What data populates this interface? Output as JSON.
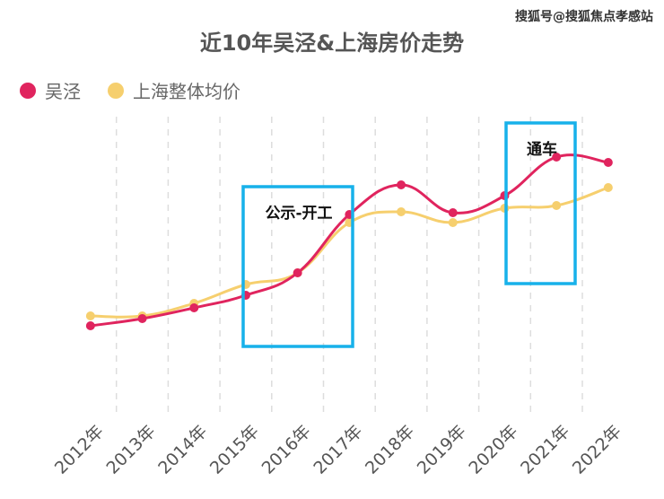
{
  "watermark": "搜狐号@搜狐焦点孝感站",
  "chart_data": {
    "type": "line",
    "title": "近10年吴泾&上海房价走势",
    "xlabel": "",
    "ylabel": "",
    "categories": [
      "2012年",
      "2013年",
      "2014年",
      "2015年",
      "2016年",
      "2017年",
      "2018年",
      "2019年",
      "2020年",
      "2021年",
      "2022年"
    ],
    "ylim": [
      0,
      330
    ],
    "grid": "vertical dashed",
    "legend_position": "top-left",
    "series": [
      {
        "name": "吴泾",
        "color": "#e0245e",
        "values": [
          97,
          105,
          117,
          131,
          156,
          221,
          254,
          223,
          242,
          285,
          279
        ]
      },
      {
        "name": "上海整体均价",
        "color": "#f6cf6e",
        "values": [
          108,
          108,
          122,
          143,
          156,
          212,
          224,
          212,
          228,
          231,
          251
        ]
      }
    ],
    "annotations": [
      {
        "text": "公示-开工",
        "range": [
          "2015年",
          "2017年"
        ],
        "box_color": "#17b1ea"
      },
      {
        "text": "通车",
        "range": [
          "2020年",
          "2021年"
        ],
        "box_color": "#17b1ea"
      }
    ]
  }
}
